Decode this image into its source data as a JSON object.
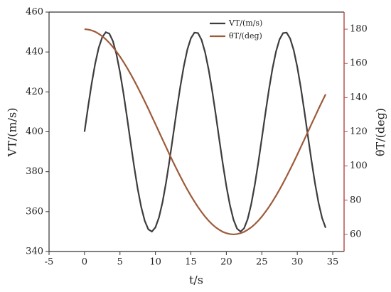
{
  "chart_data": {
    "type": "line",
    "xlabel": "t/s",
    "ylabel": "VT/(m/s)",
    "y2label": "θT/(deg)",
    "xlim": [
      -5,
      36.6
    ],
    "xticks": [
      -5,
      0,
      5,
      10,
      15,
      20,
      25,
      30,
      35
    ],
    "ylim": [
      340,
      460
    ],
    "yticks": [
      340,
      360,
      380,
      400,
      420,
      440,
      460
    ],
    "y2lim": [
      50,
      190
    ],
    "y2ticks": [
      60,
      80,
      100,
      120,
      140,
      160,
      180
    ],
    "y2color": "#b5524c",
    "legend": "upper right",
    "x": [
      0,
      0.5,
      1,
      1.5,
      2,
      2.5,
      3,
      3.5,
      4,
      4.5,
      5,
      5.5,
      6,
      6.5,
      7,
      7.5,
      8,
      8.5,
      9,
      9.5,
      10,
      10.5,
      11,
      11.5,
      12,
      12.5,
      13,
      13.5,
      14,
      14.5,
      15,
      15.5,
      16,
      16.5,
      17,
      17.5,
      18,
      18.5,
      19,
      19.5,
      20,
      20.5,
      21,
      21.5,
      22,
      22.5,
      23,
      23.5,
      24,
      24.5,
      25,
      25.5,
      26,
      26.5,
      27,
      27.5,
      28,
      28.5,
      29,
      29.5,
      30,
      30.5,
      31,
      31.5,
      32,
      32.5,
      33,
      33.5,
      34
    ],
    "series": [
      {
        "name": "VT/(m/s)",
        "color": "#3d3d3d",
        "values": [
          400,
          412.4,
          424.0,
          434.1,
          442.1,
          447.4,
          449.9,
          449.2,
          445.5,
          438.9,
          429.9,
          419.1,
          407.1,
          394.6,
          382.5,
          371.4,
          362.2,
          355.3,
          351.1,
          350.0,
          352.1,
          357.1,
          364.7,
          374.6,
          386.0,
          398.3,
          410.8,
          422.5,
          432.8,
          441.2,
          446.9,
          449.7,
          449.5,
          446.1,
          439.9,
          431.2,
          420.6,
          408.7,
          396.2,
          384.0,
          372.8,
          363.3,
          356.0,
          351.5,
          350.0,
          351.6,
          356.2,
          363.6,
          373.2,
          384.4,
          396.7,
          409.1,
          421.0,
          431.6,
          440.2,
          446.3,
          449.5,
          449.7,
          446.7,
          440.9,
          432.5,
          422.1,
          410.3,
          397.9,
          385.6,
          374.2,
          364.4,
          356.8,
          351.9
        ]
      },
      {
        "name": "θT/(deg)",
        "color": "#9e5a3a",
        "axis": "y2",
        "values": [
          180,
          179.8,
          179.3,
          178.5,
          177.3,
          175.9,
          174.1,
          172.0,
          169.6,
          166.9,
          164.0,
          160.8,
          157.4,
          153.8,
          150.0,
          146.0,
          141.9,
          137.7,
          133.4,
          128.9,
          124.5,
          120.0,
          115.5,
          111.1,
          106.6,
          102.3,
          98.1,
          94.0,
          90.0,
          86.2,
          82.6,
          79.2,
          76.0,
          73.1,
          70.4,
          68.0,
          65.9,
          64.1,
          62.7,
          61.5,
          60.7,
          60.2,
          60.0,
          60.2,
          60.7,
          61.5,
          62.7,
          64.1,
          65.9,
          68.0,
          70.4,
          73.1,
          76.0,
          79.2,
          82.6,
          86.2,
          90.0,
          94.0,
          98.1,
          102.3,
          106.6,
          111.1,
          115.5,
          120.0,
          124.5,
          128.9,
          133.4,
          137.7,
          141.9
        ]
      }
    ]
  }
}
